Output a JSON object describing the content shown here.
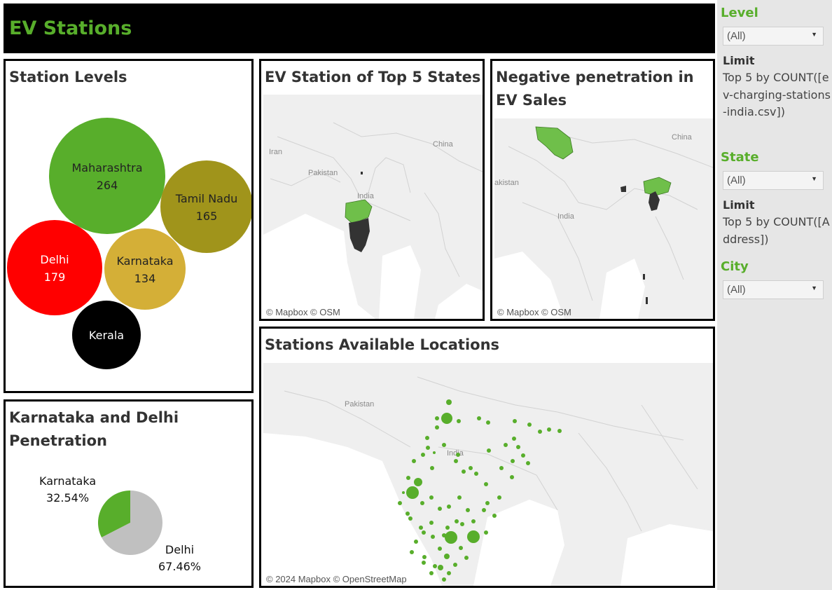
{
  "header": {
    "title": "EV Stations"
  },
  "panels": {
    "station_levels": {
      "title": "Station Levels"
    },
    "top5_map": {
      "title": "EV Station of Top 5 States",
      "attribution": "© Mapbox © OSM",
      "labels": [
        "Iran",
        "Pakistan",
        "India",
        "China"
      ]
    },
    "negative_map": {
      "title": "Negative penetration in EV Sales",
      "attribution": "© Mapbox © OSM",
      "labels": [
        "akistan",
        "India",
        "China"
      ]
    },
    "pie": {
      "title": "Karnataka and Delhi Penetration"
    },
    "locations_map": {
      "title": "Stations Available Locations",
      "attribution": "© 2024 Mapbox © OpenStreetMap",
      "labels": [
        "Pakistan",
        "India"
      ]
    }
  },
  "chart_data": [
    {
      "type": "bubble",
      "title": "Station Levels",
      "series": [
        {
          "name": "Maharashtra",
          "value": 264,
          "color": "#58ae2b"
        },
        {
          "name": "Tamil Nadu",
          "value": 165,
          "color": "#a0941b"
        },
        {
          "name": "Delhi",
          "value": 179,
          "color": "#ff0000"
        },
        {
          "name": "Karnataka",
          "value": 134,
          "color": "#d4af37"
        },
        {
          "name": "Kerala",
          "value": null,
          "color": "#000000"
        }
      ]
    },
    {
      "type": "pie",
      "title": "Karnataka and Delhi Penetration",
      "slices": [
        {
          "name": "Karnataka",
          "value": 32.54,
          "label": "32.54%",
          "color": "#58ae2b"
        },
        {
          "name": "Delhi",
          "value": 67.46,
          "label": "67.46%",
          "color": "#c0c0c0"
        }
      ]
    }
  ],
  "filters": {
    "level": {
      "title": "Level",
      "value": "(All)",
      "limit_label": "Limit",
      "limit_value": "Top 5 by COUNT([ev-charging-stations-india.csv])"
    },
    "state": {
      "title": "State",
      "value": "(All)",
      "limit_label": "Limit",
      "limit_value": "Top 5 by COUNT([Address])"
    },
    "city": {
      "title": "City",
      "value": "(All)"
    }
  },
  "colors": {
    "accent": "#58ae2b",
    "map_land": "#efefef",
    "map_water": "#ffffff"
  }
}
